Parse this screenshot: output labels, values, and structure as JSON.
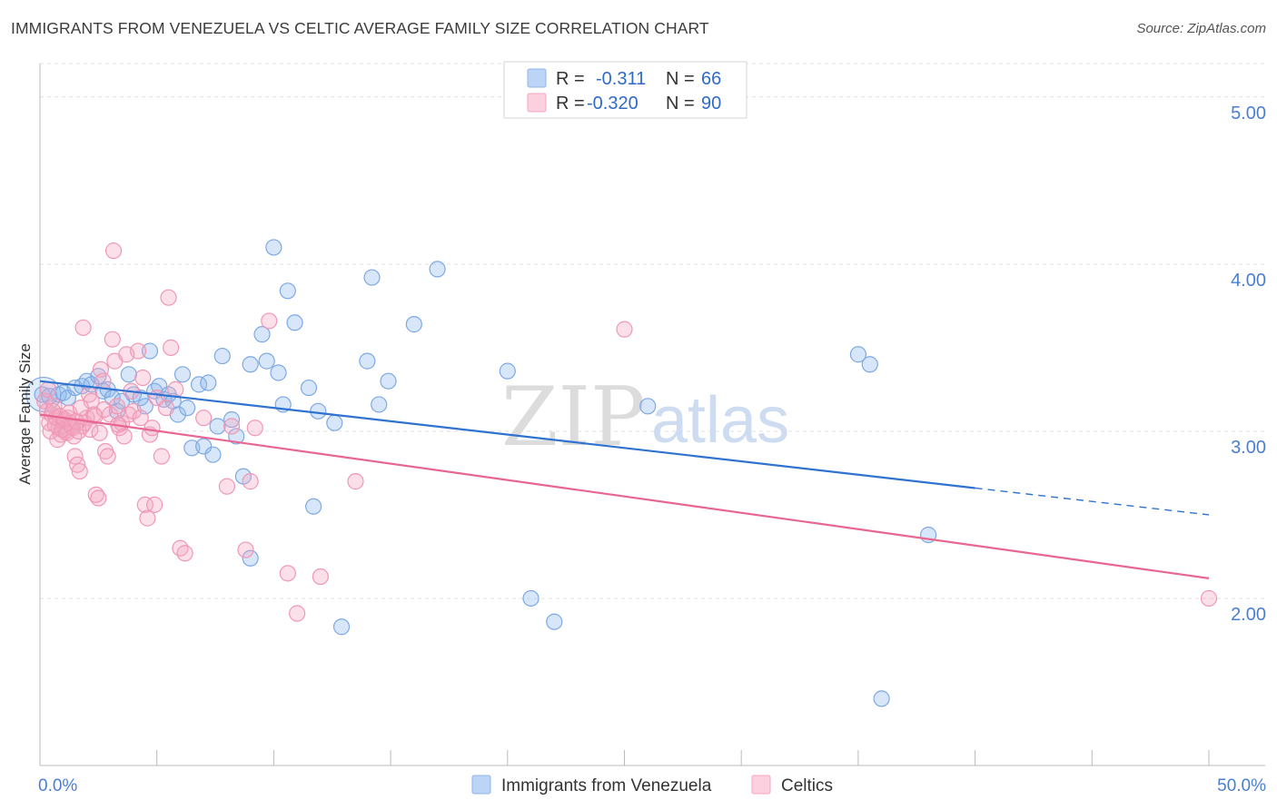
{
  "title": "IMMIGRANTS FROM VENEZUELA VS CELTIC AVERAGE FAMILY SIZE CORRELATION CHART",
  "source": "Source: ZipAtlas.com",
  "watermark": {
    "zip": "ZIP",
    "atlas": "atlas"
  },
  "colors": {
    "venezuela": "#8db6ec",
    "venezuela_line": "#2f72d0",
    "celtics": "#f4a6c0",
    "celtics_line": "#e8668f",
    "tick": "#4a7fd0"
  },
  "legend": {
    "rows": [
      {
        "r_label": "R =",
        "r_value": "-0.311",
        "n_label": "N =",
        "n_value": "66"
      },
      {
        "r_label": "R =",
        "r_value": "-0.320",
        "n_label": "N =",
        "n_value": "90"
      }
    ]
  },
  "chart_data": {
    "type": "scatter",
    "title": "IMMIGRANTS FROM VENEZUELA VS CELTIC AVERAGE FAMILY SIZE CORRELATION CHART",
    "xlabel": "",
    "ylabel": "Average Family Size",
    "xlim": [
      0,
      50
    ],
    "ylim": [
      1.0,
      5.2
    ],
    "x_tick_labels": [
      "0.0%",
      "50.0%"
    ],
    "y_ticks": [
      2.0,
      3.0,
      4.0,
      5.0
    ],
    "y_tick_labels": [
      "2.00",
      "3.00",
      "4.00",
      "5.00"
    ],
    "grid": "horizontal dashed",
    "legend_position": "top-center",
    "series": [
      {
        "name": "Immigrants from Venezuela",
        "color": "#8db6ec",
        "trend": {
          "x": [
            0,
            40,
            50
          ],
          "y": [
            3.3,
            2.66,
            2.5
          ],
          "solid_until_x": 40
        },
        "points": [
          [
            0.1,
            3.22
          ],
          [
            0.4,
            3.21
          ],
          [
            0.8,
            3.22
          ],
          [
            1.0,
            3.23
          ],
          [
            1.2,
            3.2
          ],
          [
            1.5,
            3.26
          ],
          [
            1.8,
            3.27
          ],
          [
            2.0,
            3.3
          ],
          [
            2.2,
            3.28
          ],
          [
            2.5,
            3.33
          ],
          [
            2.7,
            3.24
          ],
          [
            2.9,
            3.25
          ],
          [
            3.1,
            3.2
          ],
          [
            3.3,
            3.12
          ],
          [
            3.5,
            3.18
          ],
          [
            3.8,
            3.34
          ],
          [
            4.0,
            3.22
          ],
          [
            4.3,
            3.2
          ],
          [
            4.5,
            3.15
          ],
          [
            4.7,
            3.48
          ],
          [
            4.9,
            3.24
          ],
          [
            5.1,
            3.27
          ],
          [
            5.3,
            3.19
          ],
          [
            5.5,
            3.22
          ],
          [
            5.7,
            3.18
          ],
          [
            5.9,
            3.1
          ],
          [
            6.1,
            3.34
          ],
          [
            6.3,
            3.14
          ],
          [
            6.5,
            2.9
          ],
          [
            6.8,
            3.28
          ],
          [
            7.0,
            2.91
          ],
          [
            7.2,
            3.29
          ],
          [
            7.4,
            2.86
          ],
          [
            7.6,
            3.03
          ],
          [
            7.8,
            3.45
          ],
          [
            8.2,
            3.07
          ],
          [
            8.4,
            2.97
          ],
          [
            8.7,
            2.73
          ],
          [
            9.0,
            2.24
          ],
          [
            9.0,
            3.4
          ],
          [
            9.5,
            3.58
          ],
          [
            9.7,
            3.42
          ],
          [
            10.0,
            4.1
          ],
          [
            10.2,
            3.35
          ],
          [
            10.4,
            3.16
          ],
          [
            10.6,
            3.84
          ],
          [
            10.9,
            3.65
          ],
          [
            11.5,
            3.26
          ],
          [
            11.7,
            2.55
          ],
          [
            11.9,
            3.12
          ],
          [
            12.6,
            3.05
          ],
          [
            12.9,
            1.83
          ],
          [
            14.0,
            3.42
          ],
          [
            14.2,
            3.92
          ],
          [
            14.5,
            3.16
          ],
          [
            14.9,
            3.3
          ],
          [
            16.0,
            3.64
          ],
          [
            17.0,
            3.97
          ],
          [
            20.0,
            3.36
          ],
          [
            21.0,
            2.0
          ],
          [
            22.0,
            1.86
          ],
          [
            26.0,
            3.15
          ],
          [
            35.0,
            3.46
          ],
          [
            35.5,
            3.4
          ],
          [
            36.0,
            1.4
          ],
          [
            38.0,
            2.38
          ]
        ]
      },
      {
        "name": "Celtics",
        "color": "#f4a6c0",
        "trend": {
          "x": [
            0,
            50
          ],
          "y": [
            3.1,
            2.12
          ],
          "solid_until_x": 50
        },
        "points": [
          [
            0.2,
            3.18
          ],
          [
            0.3,
            3.12
          ],
          [
            0.4,
            3.05
          ],
          [
            0.5,
            3.1
          ],
          [
            0.6,
            3.15
          ],
          [
            0.7,
            3.08
          ],
          [
            0.8,
            3.02
          ],
          [
            0.9,
            2.98
          ],
          [
            1.0,
            3.06
          ],
          [
            1.1,
            3.0
          ],
          [
            1.2,
            3.08
          ],
          [
            1.3,
            3.05
          ],
          [
            1.4,
            3.02
          ],
          [
            1.5,
            2.85
          ],
          [
            1.6,
            2.8
          ],
          [
            1.7,
            2.76
          ],
          [
            1.8,
            3.03
          ],
          [
            1.9,
            3.05
          ],
          [
            2.0,
            3.08
          ],
          [
            2.1,
            3.22
          ],
          [
            2.2,
            3.18
          ],
          [
            2.3,
            3.1
          ],
          [
            2.4,
            2.62
          ],
          [
            2.5,
            2.6
          ],
          [
            2.6,
            3.37
          ],
          [
            2.7,
            3.3
          ],
          [
            2.8,
            2.88
          ],
          [
            2.9,
            2.85
          ],
          [
            3.0,
            3.1
          ],
          [
            3.1,
            3.55
          ],
          [
            3.2,
            3.42
          ],
          [
            3.3,
            3.15
          ],
          [
            3.4,
            3.02
          ],
          [
            3.5,
            3.05
          ],
          [
            3.6,
            2.97
          ],
          [
            3.7,
            3.46
          ],
          [
            3.8,
            3.1
          ],
          [
            3.9,
            3.24
          ],
          [
            4.0,
            3.12
          ],
          [
            4.2,
            3.48
          ],
          [
            4.3,
            3.08
          ],
          [
            4.4,
            3.32
          ],
          [
            4.5,
            2.56
          ],
          [
            4.6,
            2.48
          ],
          [
            4.7,
            2.98
          ],
          [
            4.8,
            3.02
          ],
          [
            4.9,
            2.56
          ],
          [
            5.0,
            3.2
          ],
          [
            5.2,
            2.85
          ],
          [
            5.4,
            3.14
          ],
          [
            5.5,
            3.8
          ],
          [
            5.6,
            3.5
          ],
          [
            5.8,
            3.25
          ],
          [
            6.0,
            2.3
          ],
          [
            6.2,
            2.27
          ],
          [
            7.0,
            3.08
          ],
          [
            8.0,
            2.67
          ],
          [
            8.2,
            3.03
          ],
          [
            8.8,
            2.29
          ],
          [
            9.0,
            2.7
          ],
          [
            9.2,
            3.02
          ],
          [
            9.8,
            3.66
          ],
          [
            10.6,
            2.15
          ],
          [
            11.0,
            1.91
          ],
          [
            12.0,
            2.13
          ],
          [
            13.5,
            2.7
          ],
          [
            25.0,
            3.61
          ],
          [
            50.0,
            2.0
          ],
          [
            0.35,
            3.25
          ],
          [
            0.45,
            3.0
          ],
          [
            0.55,
            3.12
          ],
          [
            0.65,
            3.04
          ],
          [
            0.75,
            2.95
          ],
          [
            0.85,
            3.09
          ],
          [
            0.95,
            3.01
          ],
          [
            1.05,
            3.07
          ],
          [
            1.15,
            2.99
          ],
          [
            1.25,
            3.11
          ],
          [
            1.35,
            3.03
          ],
          [
            1.45,
            2.97
          ],
          [
            1.55,
            3.06
          ],
          [
            1.65,
            3.0
          ],
          [
            1.75,
            3.14
          ],
          [
            1.85,
            3.62
          ],
          [
            2.15,
            3.01
          ],
          [
            2.35,
            3.09
          ],
          [
            2.55,
            2.99
          ],
          [
            2.75,
            3.13
          ],
          [
            3.15,
            4.08
          ],
          [
            3.35,
            3.04
          ]
        ]
      }
    ]
  },
  "bottom_legend": {
    "items": [
      {
        "label": "Immigrants from Venezuela"
      },
      {
        "label": "Celtics"
      }
    ]
  }
}
